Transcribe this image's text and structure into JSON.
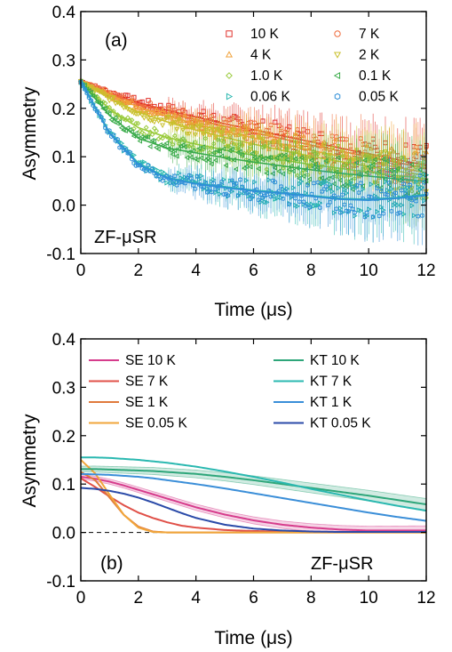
{
  "chart_data": [
    {
      "type": "scatter",
      "panel_label": "(a)",
      "annotation": "ZF-μSR",
      "xlabel": "Time (μs)",
      "ylabel": "Asymmetry",
      "xlim": [
        0,
        12
      ],
      "ylim": [
        -0.1,
        0.4
      ],
      "xticks": [
        "0",
        "2",
        "4",
        "6",
        "8",
        "10",
        "12"
      ],
      "yticks": [
        "-0.1",
        "0.0",
        "0.1",
        "0.2",
        "0.3",
        "0.4"
      ],
      "legend_placement": "top-right",
      "x": [
        0,
        1,
        2,
        3,
        4,
        5,
        6,
        7,
        8,
        9,
        10,
        11,
        12
      ],
      "series": [
        {
          "name": "10 K",
          "marker": "square",
          "color": "#e0302a",
          "values": [
            0.255,
            0.232,
            0.212,
            0.196,
            0.182,
            0.168,
            0.156,
            0.143,
            0.131,
            0.118,
            0.106,
            0.094,
            0.082
          ]
        },
        {
          "name": "7 K",
          "marker": "circle",
          "color": "#ef6a3a",
          "values": [
            0.255,
            0.231,
            0.209,
            0.192,
            0.177,
            0.163,
            0.15,
            0.137,
            0.124,
            0.112,
            0.1,
            0.088,
            0.076
          ]
        },
        {
          "name": "4 K",
          "marker": "triangle-up",
          "color": "#f0a13a",
          "values": [
            0.255,
            0.228,
            0.203,
            0.184,
            0.168,
            0.153,
            0.139,
            0.126,
            0.113,
            0.101,
            0.089,
            0.078,
            0.067
          ]
        },
        {
          "name": "2 K",
          "marker": "triangle-down",
          "color": "#c9c02c",
          "values": [
            0.255,
            0.221,
            0.192,
            0.172,
            0.155,
            0.14,
            0.126,
            0.113,
            0.101,
            0.09,
            0.08,
            0.07,
            0.061
          ]
        },
        {
          "name": "1.0 K",
          "marker": "diamond",
          "color": "#9acb3c",
          "values": [
            0.255,
            0.198,
            0.16,
            0.14,
            0.126,
            0.114,
            0.103,
            0.093,
            0.084,
            0.076,
            0.068,
            0.061,
            0.055
          ]
        },
        {
          "name": "0.1 K",
          "marker": "triangle-left",
          "color": "#3aab4a",
          "values": [
            0.255,
            0.185,
            0.138,
            0.118,
            0.108,
            0.098,
            0.089,
            0.081,
            0.073,
            0.066,
            0.06,
            0.054,
            0.049
          ]
        },
        {
          "name": "0.06 K",
          "marker": "triangle-right",
          "color": "#2ab8b0",
          "values": [
            0.255,
            0.15,
            0.087,
            0.057,
            0.046,
            0.038,
            0.031,
            0.026,
            0.02,
            0.014,
            0.012,
            0.016,
            0.022
          ]
        },
        {
          "name": "0.05 K",
          "marker": "hexagon",
          "color": "#2f8fd8",
          "values": [
            0.255,
            0.148,
            0.084,
            0.055,
            0.044,
            0.036,
            0.029,
            0.024,
            0.018,
            0.012,
            0.01,
            0.014,
            0.02
          ]
        }
      ]
    },
    {
      "type": "line",
      "panel_label": "(b)",
      "annotation": "ZF-μSR",
      "xlabel": "Time (μs)",
      "ylabel": "Asymmetry",
      "xlim": [
        0,
        12
      ],
      "ylim": [
        -0.1,
        0.4
      ],
      "xticks": [
        "0",
        "2",
        "4",
        "6",
        "8",
        "10",
        "12"
      ],
      "yticks": [
        "-0.1",
        "0.0",
        "0.1",
        "0.2",
        "0.3",
        "0.4"
      ],
      "legend_placement": "top",
      "reference_line_y": 0.0,
      "x": [
        0,
        0.5,
        1,
        1.5,
        2,
        2.5,
        3,
        3.5,
        4,
        5,
        6,
        7,
        8,
        9,
        10,
        11,
        12
      ],
      "series": [
        {
          "name": "SE 10 K",
          "color": "#d63c8c",
          "values": [
            0.115,
            0.111,
            0.105,
            0.097,
            0.088,
            0.079,
            0.07,
            0.061,
            0.052,
            0.037,
            0.025,
            0.016,
            0.01,
            0.006,
            0.004,
            0.004,
            0.004
          ]
        },
        {
          "name": "SE 7 K",
          "color": "#e05048",
          "values": [
            0.112,
            0.094,
            0.074,
            0.056,
            0.041,
            0.03,
            0.021,
            0.014,
            0.01,
            0.005,
            0.003,
            0.002,
            0.001,
            0.001,
            0.001,
            0.001,
            0.001
          ]
        },
        {
          "name": "SE 1 K",
          "color": "#e07a3c",
          "values": [
            0.125,
            0.108,
            0.072,
            0.036,
            0.012,
            0.002,
            0.0,
            0.0,
            0.0,
            0.0,
            0.0,
            0.0,
            0.0,
            0.0,
            0.0,
            0.0,
            0.0
          ]
        },
        {
          "name": "SE 0.05 K",
          "color": "#f0a63a",
          "values": [
            0.15,
            0.122,
            0.078,
            0.036,
            0.01,
            0.001,
            0.0,
            0.0,
            0.0,
            0.0,
            0.0,
            0.0,
            0.0,
            0.0,
            0.0,
            0.0,
            0.0
          ]
        },
        {
          "name": "KT 10 K",
          "color": "#2ea67a",
          "values": [
            0.131,
            0.131,
            0.13,
            0.129,
            0.128,
            0.127,
            0.125,
            0.123,
            0.121,
            0.115,
            0.108,
            0.1,
            0.092,
            0.084,
            0.076,
            0.067,
            0.058
          ]
        },
        {
          "name": "KT 7 K",
          "color": "#2ab8b0",
          "values": [
            0.155,
            0.155,
            0.154,
            0.152,
            0.15,
            0.147,
            0.144,
            0.14,
            0.136,
            0.126,
            0.115,
            0.103,
            0.09,
            0.078,
            0.066,
            0.055,
            0.045
          ]
        },
        {
          "name": "KT 1 K",
          "color": "#3a8ed8",
          "values": [
            0.121,
            0.12,
            0.119,
            0.117,
            0.115,
            0.112,
            0.108,
            0.104,
            0.1,
            0.091,
            0.081,
            0.071,
            0.061,
            0.051,
            0.041,
            0.032,
            0.024
          ]
        },
        {
          "name": "KT 0.05 K",
          "color": "#2a4aa8",
          "values": [
            0.092,
            0.09,
            0.086,
            0.08,
            0.072,
            0.062,
            0.051,
            0.04,
            0.03,
            0.016,
            0.008,
            0.004,
            0.002,
            0.001,
            0.001,
            0.001,
            0.001
          ]
        }
      ],
      "bands": [
        {
          "series": "SE 10 K",
          "halfwidth": 0.008
        },
        {
          "series": "KT 10 K",
          "halfwidth": 0.01
        }
      ]
    }
  ]
}
